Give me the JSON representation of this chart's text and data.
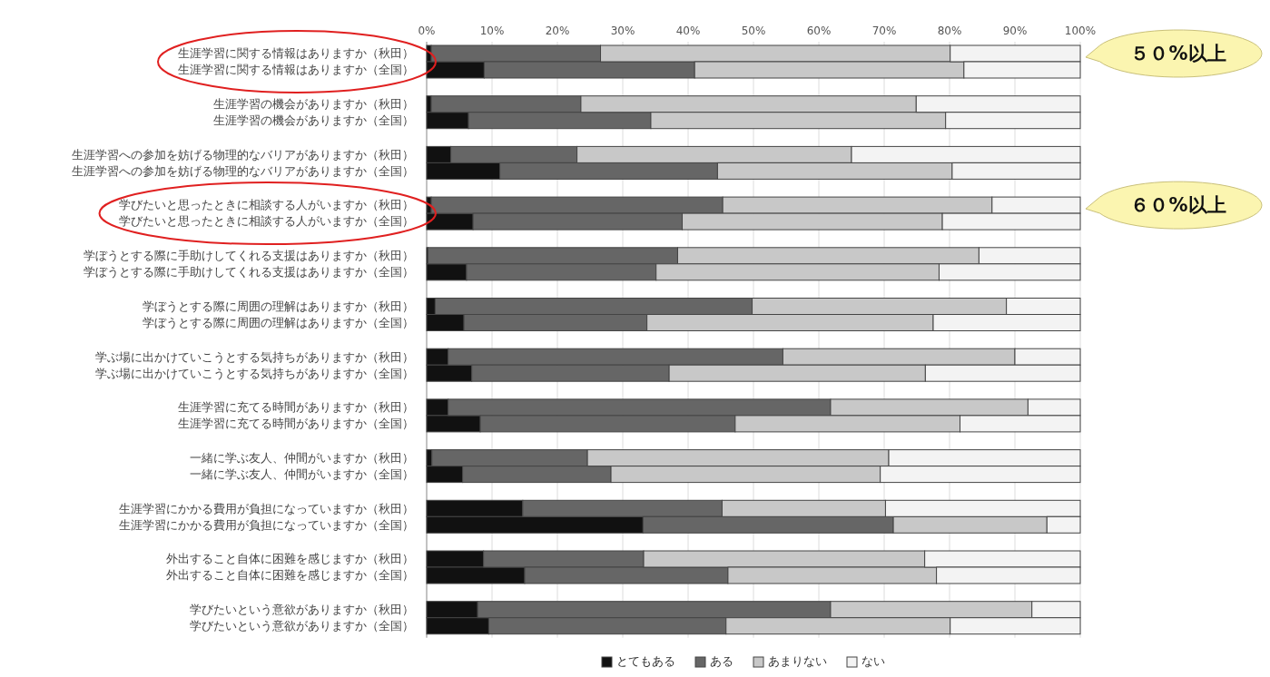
{
  "chart_data": {
    "type": "bar",
    "orientation": "horizontal",
    "stacked": true,
    "categories": [
      "生涯学習に関する情報はありますか（秋田）",
      "生涯学習に関する情報はありますか（全国）",
      "生涯学習の機会がありますか（秋田）",
      "生涯学習の機会がありますか（全国）",
      "生涯学習への参加を妨げる物理的なバリアがありますか（秋田）",
      "生涯学習への参加を妨げる物理的なバリアがありますか（全国）",
      "学びたいと思ったときに相談する人がいますか（秋田）",
      "学びたいと思ったときに相談する人がいますか（全国）",
      "学ぼうとする際に手助けしてくれる支援はありますか（秋田）",
      "学ぼうとする際に手助けしてくれる支援はありますか（全国）",
      "学ぼうとする際に周囲の理解はありますか（秋田）",
      "学ぼうとする際に周囲の理解はありますか（全国）",
      "学ぶ場に出かけていこうとする気持ちがありますか（秋田）",
      "学ぶ場に出かけていこうとする気持ちがありますか（全国）",
      "生涯学習に充てる時間がありますか（秋田）",
      "生涯学習に充てる時間がありますか（全国）",
      "一緒に学ぶ友人、仲間がいますか（秋田）",
      "一緒に学ぶ友人、仲間がいますか（全国）",
      "生涯学習にかかる費用が負担になっていますか（秋田）",
      "生涯学習にかかる費用が負担になっていますか（全国）",
      "外出すること自体に困難を感じますか（秋田）",
      "外出すること自体に困難を感じますか（全国）",
      "学びたいという意欲がありますか（秋田）",
      "学びたいという意欲がありますか（全国）"
    ],
    "series": [
      {
        "name": "とてもある",
        "color": "#111111",
        "values": [
          0.7,
          8.8,
          0.7,
          6.4,
          3.7,
          11.2,
          0.7,
          7.1,
          0.2,
          6.1,
          1.3,
          5.7,
          3.3,
          6.9,
          3.3,
          8.2,
          0.8,
          5.5,
          14.7,
          33.1,
          8.7,
          15.0,
          7.8,
          9.5
        ]
      },
      {
        "name": "ある",
        "color": "#666666",
        "values": [
          25.9,
          32.2,
          22.9,
          27.9,
          19.3,
          33.3,
          44.6,
          32.0,
          38.2,
          29.0,
          48.5,
          28.0,
          51.2,
          30.2,
          58.5,
          39.0,
          23.8,
          22.7,
          30.5,
          38.3,
          24.5,
          31.1,
          54.0,
          36.3
        ]
      },
      {
        "name": "あまりない",
        "color": "#c8c8c8",
        "values": [
          53.5,
          41.2,
          51.3,
          45.1,
          42.0,
          35.9,
          41.2,
          39.8,
          46.1,
          43.3,
          38.9,
          43.8,
          35.5,
          39.2,
          30.2,
          34.4,
          46.1,
          41.2,
          25.0,
          23.5,
          43.0,
          31.9,
          30.8,
          34.3
        ]
      },
      {
        "name": "ない",
        "color": "#f3f3f3",
        "values": [
          19.9,
          17.8,
          25.1,
          20.6,
          35.0,
          19.6,
          13.5,
          21.1,
          15.5,
          21.6,
          11.3,
          22.5,
          10.0,
          23.7,
          8.0,
          18.4,
          29.3,
          30.6,
          29.8,
          5.1,
          23.8,
          22.0,
          7.4,
          19.9
        ]
      }
    ],
    "xlim": [
      0,
      100
    ],
    "xticks": [
      {
        "value": 0,
        "label": "0%"
      },
      {
        "value": 10,
        "label": "10%"
      },
      {
        "value": 20,
        "label": "20%"
      },
      {
        "value": 30,
        "label": "30%"
      },
      {
        "value": 40,
        "label": "40%"
      },
      {
        "value": 50,
        "label": "50%"
      },
      {
        "value": 60,
        "label": "60%"
      },
      {
        "value": 70,
        "label": "70%"
      },
      {
        "value": 80,
        "label": "80%"
      },
      {
        "value": 90,
        "label": "90%"
      },
      {
        "value": 100,
        "label": "100%"
      }
    ],
    "grid": "x",
    "legend": "bottom",
    "annotations": [
      "５０%以上",
      "６０%以上"
    ]
  }
}
